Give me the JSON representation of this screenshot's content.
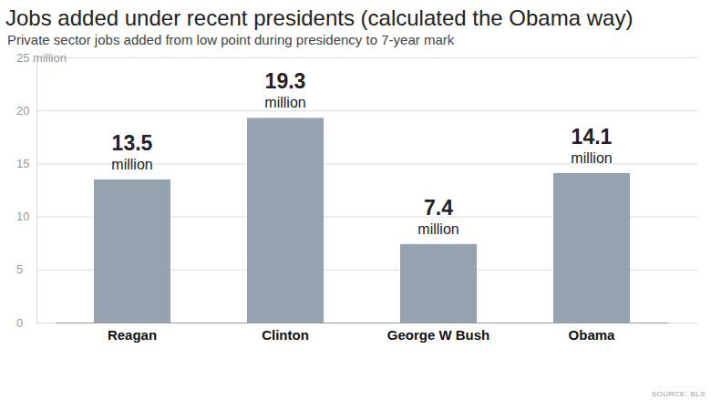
{
  "chart_data": {
    "type": "bar",
    "title": "Jobs added under recent presidents (calculated the Obama way)",
    "subtitle": "Private sector jobs added from low point during presidency to 7-year mark",
    "categories": [
      "Reagan",
      "Clinton",
      "George W Bush",
      "Obama"
    ],
    "values": [
      13.5,
      19.3,
      7.4,
      14.1
    ],
    "value_labels": [
      "13.5 million",
      "19.3 million",
      "7.4 million",
      "14.1 million"
    ],
    "data_labels": true,
    "color": "#95a3b0",
    "ylim": [
      0,
      25
    ],
    "yticks": [
      0,
      5,
      10,
      15,
      20,
      {
        "value": 25,
        "label": "25 million"
      }
    ],
    "grid": true,
    "source": "SOURCE: BLS"
  }
}
